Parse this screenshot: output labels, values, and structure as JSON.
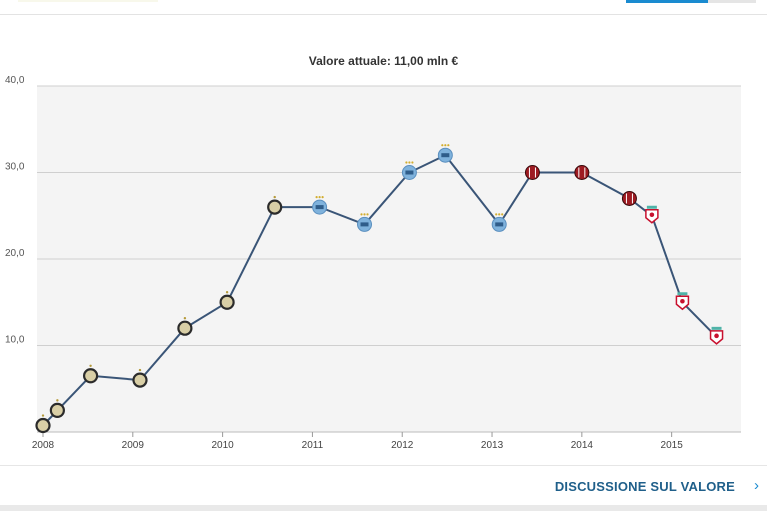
{
  "chart_data": {
    "type": "line",
    "title": "Valore attuale: 11,00 mln €",
    "x_ticks": [
      "2008",
      "2009",
      "2010",
      "2011",
      "2012",
      "2013",
      "2014",
      "2015"
    ],
    "y_ticks": [
      "10,0",
      "20,0",
      "30,0",
      "40,0"
    ],
    "ylim": [
      0,
      40
    ],
    "xlim": [
      2008,
      2015.75
    ],
    "grid": true,
    "series": [
      {
        "color": "#3a5577",
        "points": [
          {
            "x": 2008.0,
            "y": 0.75,
            "club": "inter"
          },
          {
            "x": 2008.16,
            "y": 2.5,
            "club": "inter"
          },
          {
            "x": 2008.53,
            "y": 6.5,
            "club": "inter"
          },
          {
            "x": 2009.08,
            "y": 6.0,
            "club": "inter"
          },
          {
            "x": 2009.58,
            "y": 12.0,
            "club": "inter"
          },
          {
            "x": 2010.05,
            "y": 15.0,
            "club": "inter"
          },
          {
            "x": 2010.58,
            "y": 26.0,
            "club": "inter"
          },
          {
            "x": 2011.08,
            "y": 26.0,
            "club": "man-city"
          },
          {
            "x": 2011.58,
            "y": 24.0,
            "club": "man-city"
          },
          {
            "x": 2012.08,
            "y": 30.0,
            "club": "man-city"
          },
          {
            "x": 2012.48,
            "y": 32.0,
            "club": "man-city"
          },
          {
            "x": 2013.08,
            "y": 24.0,
            "club": "man-city"
          },
          {
            "x": 2013.45,
            "y": 30.0,
            "club": "milan"
          },
          {
            "x": 2014.0,
            "y": 30.0,
            "club": "milan"
          },
          {
            "x": 2014.53,
            "y": 27.0,
            "club": "milan"
          },
          {
            "x": 2014.78,
            "y": 25.0,
            "club": "liverpool"
          },
          {
            "x": 2015.12,
            "y": 15.0,
            "club": "liverpool"
          },
          {
            "x": 2015.5,
            "y": 11.0,
            "club": "liverpool"
          }
        ]
      }
    ]
  },
  "club_colors": {
    "inter": "#2b2b2b",
    "man-city": "#7fb2dc",
    "milan": "#9e1b22",
    "liverpool": "#c8102e",
    "line": "#3a5577",
    "grid": "#cfcfcf",
    "plot_bg": "#f4f4f4"
  },
  "footer": {
    "link_label": "DISCUSSIONE SUL VALORE",
    "chevron": "›"
  }
}
